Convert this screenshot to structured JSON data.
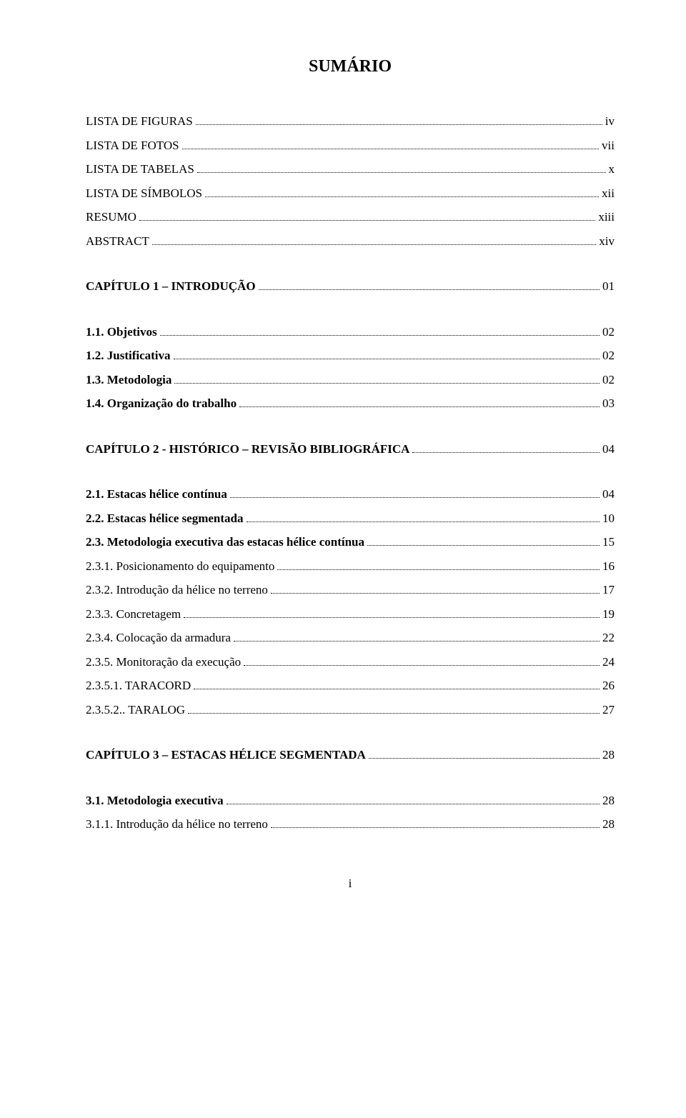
{
  "title": "SUMÁRIO",
  "lines": [
    {
      "label": "LISTA DE FIGURAS",
      "page": "iv",
      "bold": false,
      "indent": false,
      "gapBefore": false
    },
    {
      "label": "LISTA DE FOTOS",
      "page": "vii",
      "bold": false,
      "indent": false,
      "gapBefore": false
    },
    {
      "label": "LISTA DE TABELAS",
      "page": "x",
      "bold": false,
      "indent": false,
      "gapBefore": false
    },
    {
      "label": "LISTA DE SÍMBOLOS",
      "page": "xii",
      "bold": false,
      "indent": false,
      "gapBefore": false
    },
    {
      "label": "RESUMO",
      "page": "xiii",
      "bold": false,
      "indent": false,
      "gapBefore": false
    },
    {
      "label": "ABSTRACT",
      "page": "xiv",
      "bold": false,
      "indent": false,
      "gapBefore": false
    },
    {
      "label": "CAPÍTULO 1 – INTRODUÇÃO",
      "page": "01",
      "bold": true,
      "indent": false,
      "gapBefore": true,
      "mixed": true,
      "sc": "CAPÍTULO 1 – ",
      "reg": "INTRODUÇÃO"
    },
    {
      "label": "1.1.  Objetivos",
      "page": "02",
      "bold": true,
      "indent": false,
      "gapBefore": true
    },
    {
      "label": "1.2.  Justificativa",
      "page": "02",
      "bold": true,
      "indent": false,
      "gapBefore": false
    },
    {
      "label": "1.3.  Metodologia",
      "page": "02",
      "bold": true,
      "indent": false,
      "gapBefore": false
    },
    {
      "label": "1.4.  Organização do trabalho",
      "page": "03",
      "bold": true,
      "indent": false,
      "gapBefore": false
    },
    {
      "label": "CAPÍTULO 2 - HISTÓRICO – REVISÃO BIBLIOGRÁFICA",
      "page": "04",
      "bold": true,
      "indent": false,
      "gapBefore": true,
      "mixed": true,
      "sc": "CAPÍTULO 2 - ",
      "reg": "HISTÓRICO – REVISÃO BIBLIOGRÁFICA"
    },
    {
      "label": "2.1.  Estacas hélice contínua",
      "page": "04",
      "bold": true,
      "indent": false,
      "gapBefore": true
    },
    {
      "label": "2.2.  Estacas hélice segmentada",
      "page": "10",
      "bold": true,
      "indent": false,
      "gapBefore": false
    },
    {
      "label": "2.3.  Metodologia executiva das estacas hélice contínua",
      "page": "15",
      "bold": true,
      "indent": false,
      "gapBefore": false
    },
    {
      "label": "2.3.1.   Posicionamento do equipamento",
      "page": "16",
      "bold": false,
      "indent": false,
      "gapBefore": false
    },
    {
      "label": "2.3.2.   Introdução da hélice no terreno",
      "page": "17",
      "bold": false,
      "indent": false,
      "gapBefore": false
    },
    {
      "label": "2.3.3.   Concretagem",
      "page": "19",
      "bold": false,
      "indent": false,
      "gapBefore": false
    },
    {
      "label": "2.3.4.   Colocação da armadura",
      "page": "22",
      "bold": false,
      "indent": false,
      "gapBefore": false
    },
    {
      "label": "2.3.5.   Monitoração da execução",
      "page": "24",
      "bold": false,
      "indent": false,
      "gapBefore": false
    },
    {
      "label": "2.3.5.1.    TARACORD",
      "page": "26",
      "bold": false,
      "indent": false,
      "gapBefore": false
    },
    {
      "label": "2.3.5.2..   TARALOG",
      "page": "27",
      "bold": false,
      "indent": false,
      "gapBefore": false
    },
    {
      "label": "CAPÍTULO 3 – ESTACAS HÉLICE SEGMENTADA",
      "page": "28",
      "bold": true,
      "indent": false,
      "gapBefore": true,
      "mixed": true,
      "sc": "CAPÍTULO 3 – ",
      "reg": "ESTACAS HÉLICE SEGMENTADA"
    },
    {
      "label": "3.1.  Metodologia executiva",
      "page": "28",
      "bold": true,
      "indent": false,
      "gapBefore": true
    },
    {
      "label": "3.1.1.   Introdução da hélice no terreno",
      "page": "28",
      "bold": false,
      "indent": false,
      "gapBefore": false
    }
  ],
  "footerPage": "i",
  "style": {
    "fontFamily": "Times New Roman",
    "textColor": "#000000",
    "backgroundColor": "#ffffff",
    "titleFontSize": 24,
    "bodyFontSize": 17,
    "pageWidth": 960,
    "pageHeight": 1565
  }
}
